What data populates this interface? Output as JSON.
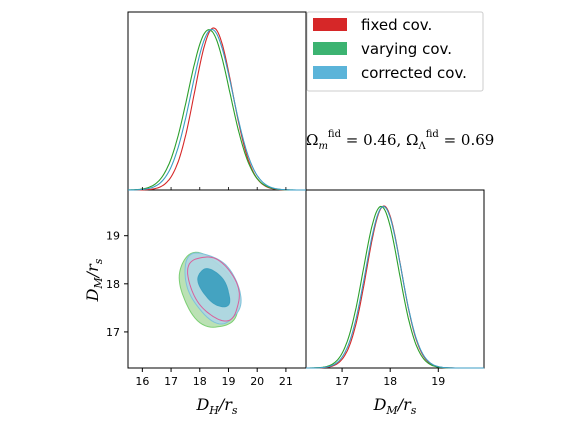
{
  "chart_data": {
    "type": "triangle",
    "panels": [
      {
        "name": "DH-marginal",
        "type": "line",
        "x_param": "D_H/r_s",
        "xlim": [
          15.5,
          21.7
        ],
        "series": [
          {
            "name": "fixed cov.",
            "color": "#d62728",
            "peak": 18.48,
            "sigma": 0.66
          },
          {
            "name": "varying cov.",
            "color": "#2ca02c",
            "peak": 18.32,
            "sigma": 0.73
          },
          {
            "name": "corrected cov.",
            "color": "#3b9cc4",
            "peak": 18.42,
            "sigma": 0.72
          }
        ]
      },
      {
        "name": "DM-marginal",
        "type": "line",
        "x_param": "D_M/r_s",
        "xlim": [
          16.25,
          19.95
        ],
        "series": [
          {
            "name": "fixed cov.",
            "color": "#d62728",
            "peak": 17.87,
            "sigma": 0.36
          },
          {
            "name": "varying cov.",
            "color": "#2ca02c",
            "peak": 17.81,
            "sigma": 0.37
          },
          {
            "name": "corrected cov.",
            "color": "#3b9cc4",
            "peak": 17.86,
            "sigma": 0.37
          }
        ]
      },
      {
        "name": "joint-contours",
        "type": "contour",
        "x_param": "D_H/r_s",
        "y_param": "D_M/r_s",
        "xlim": [
          15.5,
          21.7
        ],
        "ylim": [
          16.25,
          19.95
        ],
        "contours": [
          {
            "series": "varying cov.",
            "level": "95%",
            "center": [
              18.3,
              17.85
            ],
            "radii": [
              1.8,
              0.92
            ],
            "angle_deg": -28,
            "fill": "#b7dfb0",
            "stroke": "#7ccf74"
          },
          {
            "series": "corrected cov.",
            "level": "95%",
            "center": [
              18.45,
              17.92
            ],
            "radii": [
              1.65,
              0.88
            ],
            "angle_deg": -30,
            "fill": "#aed6e3",
            "stroke": "#7fc2da"
          },
          {
            "series": "fixed cov.",
            "level": "95%",
            "center": [
              18.5,
              17.92
            ],
            "radii": [
              1.52,
              0.8
            ],
            "angle_deg": -30,
            "fill": "none",
            "stroke": "#d9609b"
          },
          {
            "series": "corrected cov.",
            "level": "68%",
            "center": [
              18.5,
              17.92
            ],
            "radii": [
              0.82,
              0.5
            ],
            "angle_deg": -35,
            "fill": "#3ea0bf",
            "stroke": "#3ea0bf"
          }
        ]
      }
    ],
    "x_ticks_DH": [
      "16",
      "17",
      "18",
      "19",
      "20",
      "21"
    ],
    "x_ticks_DM": [
      "17",
      "18",
      "19"
    ],
    "y_ticks_DM": [
      "17",
      "18",
      "19"
    ],
    "legend": {
      "placement": "top-right",
      "entries": [
        {
          "label": "fixed cov.",
          "color": "#d62728"
        },
        {
          "label": "varying cov.",
          "color": "#3cb371"
        },
        {
          "label": "corrected cov.",
          "color": "#5bb4d9"
        }
      ]
    }
  },
  "labels": {
    "x_bottom_left": "D_H/r_s",
    "x_bottom_right": "D_M/r_s",
    "y_left": "D_M/r_s",
    "annotation": "Ω_m^fid = 0.46, Ω_Λ^fid = 0.69"
  }
}
